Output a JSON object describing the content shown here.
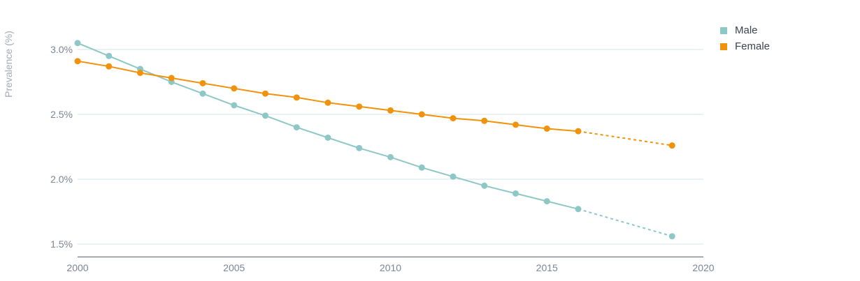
{
  "chart_data": {
    "type": "line",
    "ylabel": "Prevalence (%)",
    "xlim": [
      2000,
      2020
    ],
    "ylim": [
      1.4,
      3.1
    ],
    "x_ticks": [
      "2000",
      "2005",
      "2010",
      "2015",
      "2020"
    ],
    "y_ticks": [
      "1.5%",
      "2.0%",
      "2.5%",
      "3.0%"
    ],
    "grid": "horizontal",
    "legend_position": "top-right",
    "series": [
      {
        "name": "Male",
        "color": "#8ec8c6",
        "x": [
          2000,
          2001,
          2002,
          2003,
          2004,
          2005,
          2006,
          2007,
          2008,
          2009,
          2010,
          2011,
          2012,
          2013,
          2014,
          2015,
          2016,
          2019
        ],
        "values": [
          3.05,
          2.95,
          2.85,
          2.75,
          2.66,
          2.57,
          2.49,
          2.4,
          2.32,
          2.24,
          2.17,
          2.09,
          2.02,
          1.95,
          1.89,
          1.83,
          1.77,
          1.56
        ],
        "projected_from": 2016
      },
      {
        "name": "Female",
        "color": "#f0920a",
        "x": [
          2000,
          2001,
          2002,
          2003,
          2004,
          2005,
          2006,
          2007,
          2008,
          2009,
          2010,
          2011,
          2012,
          2013,
          2014,
          2015,
          2016,
          2019
        ],
        "values": [
          2.91,
          2.87,
          2.82,
          2.78,
          2.74,
          2.7,
          2.66,
          2.63,
          2.59,
          2.56,
          2.53,
          2.5,
          2.47,
          2.45,
          2.42,
          2.39,
          2.37,
          2.26
        ],
        "projected_from": 2016
      }
    ]
  }
}
